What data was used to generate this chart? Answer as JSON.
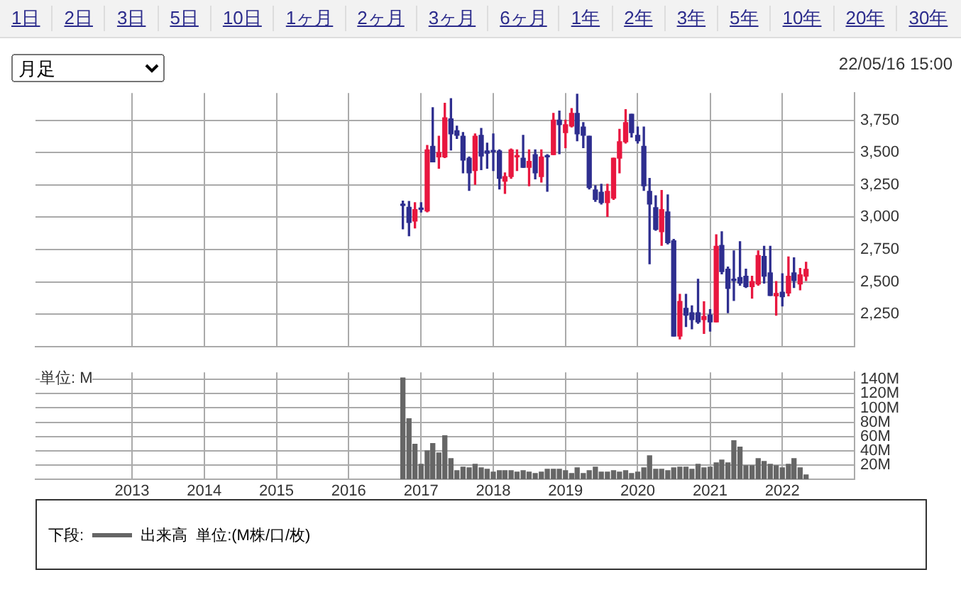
{
  "chart_data": [
    {
      "type": "candlestick",
      "subtitle": "22/05/16 15:00",
      "annotations": [
        "1日",
        "2日",
        "3日",
        "5日",
        "10日",
        "1ヶ月",
        "2ヶ月",
        "3ヶ月",
        "6ヶ月",
        "1年",
        "2年",
        "3年",
        "5年",
        "10年",
        "20年",
        "30年",
        "月足"
      ],
      "x": [
        "2016-10",
        "2016-11",
        "2016-12",
        "2017-01",
        "2017-02",
        "2017-03",
        "2017-04",
        "2017-05",
        "2017-06",
        "2017-07",
        "2017-08",
        "2017-09",
        "2017-10",
        "2017-11",
        "2017-12",
        "2018-01",
        "2018-02",
        "2018-03",
        "2018-04",
        "2018-05",
        "2018-06",
        "2018-07",
        "2018-08",
        "2018-09",
        "2018-10",
        "2018-11",
        "2018-12",
        "2019-01",
        "2019-02",
        "2019-03",
        "2019-04",
        "2019-05",
        "2019-06",
        "2019-07",
        "2019-08",
        "2019-09",
        "2019-10",
        "2019-11",
        "2019-12",
        "2020-01",
        "2020-02",
        "2020-03",
        "2020-04",
        "2020-05",
        "2020-06",
        "2020-07",
        "2020-08",
        "2020-09",
        "2020-10",
        "2020-11",
        "2020-12",
        "2021-01",
        "2021-02",
        "2021-03",
        "2021-04",
        "2021-05",
        "2021-06",
        "2021-07",
        "2021-08",
        "2021-09",
        "2021-10",
        "2021-11",
        "2021-12",
        "2022-01",
        "2022-02",
        "2022-03",
        "2022-04",
        "2022-05"
      ],
      "ohlc": [
        [
          3100,
          3125,
          2910,
          3090
        ],
        [
          3076,
          3122,
          2856,
          2959
        ],
        [
          2970,
          3112,
          2917,
          3059
        ],
        [
          3070,
          3112,
          3040,
          3060
        ],
        [
          3048,
          3555,
          3041,
          3520
        ],
        [
          3548,
          3846,
          3427,
          3427
        ],
        [
          3466,
          3626,
          3378,
          3500
        ],
        [
          3466,
          3881,
          3460,
          3768
        ],
        [
          3760,
          3917,
          3520,
          3644
        ],
        [
          3668,
          3704,
          3608,
          3633
        ],
        [
          3626,
          3654,
          3342,
          3441
        ],
        [
          3456,
          3466,
          3207,
          3342
        ],
        [
          3360,
          3644,
          3254,
          3626
        ],
        [
          3633,
          3686,
          3367,
          3473
        ],
        [
          3512,
          3573,
          3378,
          3495
        ],
        [
          3516,
          3644,
          3360,
          3505
        ],
        [
          3512,
          3520,
          3218,
          3300
        ],
        [
          3278,
          3342,
          3183,
          3314
        ],
        [
          3314,
          3527,
          3300,
          3520
        ],
        [
          3466,
          3520,
          3360,
          3470
        ],
        [
          3456,
          3633,
          3385,
          3385
        ],
        [
          3385,
          3520,
          3243,
          3431
        ],
        [
          3484,
          3520,
          3296,
          3342
        ],
        [
          3314,
          3520,
          3271,
          3466
        ],
        [
          3470,
          3484,
          3200,
          3466
        ],
        [
          3484,
          3803,
          3484,
          3750
        ],
        [
          3750,
          3821,
          3491,
          3715
        ],
        [
          3654,
          3750,
          3537,
          3715
        ],
        [
          3704,
          3839,
          3697,
          3803
        ],
        [
          3803,
          3950,
          3590,
          3644
        ],
        [
          3697,
          3732,
          3537,
          3633
        ],
        [
          3626,
          3626,
          3218,
          3229
        ],
        [
          3211,
          3243,
          3122,
          3137
        ],
        [
          3193,
          3254,
          3101,
          3112
        ],
        [
          3112,
          3254,
          3005,
          3200
        ],
        [
          3147,
          3456,
          3137,
          3456
        ],
        [
          3456,
          3679,
          3342,
          3583
        ],
        [
          3583,
          3832,
          3573,
          3732
        ],
        [
          3796,
          3796,
          3619,
          3654
        ],
        [
          3633,
          3697,
          3573,
          3590
        ],
        [
          3548,
          3697,
          3207,
          3243
        ],
        [
          3200,
          3300,
          2640,
          3101
        ],
        [
          3073,
          3165,
          2899,
          2906
        ],
        [
          2888,
          3207,
          2782,
          3059
        ],
        [
          3041,
          3172,
          2793,
          2803
        ],
        [
          2817,
          2828,
          2080,
          2080
        ],
        [
          2080,
          2403,
          2059,
          2349
        ],
        [
          2296,
          2403,
          2154,
          2243
        ],
        [
          2261,
          2314,
          2137,
          2208
        ],
        [
          2261,
          2520,
          2179,
          2190
        ],
        [
          2208,
          2346,
          2101,
          2232
        ],
        [
          2243,
          2286,
          2119,
          2190
        ],
        [
          2190,
          2864,
          2190,
          2775
        ],
        [
          2782,
          2888,
          2562,
          2580
        ],
        [
          2598,
          2615,
          2261,
          2449
        ],
        [
          2520,
          2740,
          2356,
          2510
        ],
        [
          2534,
          2810,
          2474,
          2491
        ],
        [
          2544,
          2598,
          2456,
          2463
        ],
        [
          2463,
          2544,
          2374,
          2502
        ],
        [
          2484,
          2740,
          2474,
          2704
        ],
        [
          2697,
          2775,
          2491,
          2544
        ],
        [
          2569,
          2775,
          2395,
          2395
        ],
        [
          2392,
          2502,
          2243,
          2410
        ],
        [
          2420,
          2562,
          2314,
          2385
        ],
        [
          2413,
          2693,
          2392,
          2544
        ],
        [
          2569,
          2686,
          2456,
          2509
        ],
        [
          2484,
          2604,
          2438,
          2555
        ],
        [
          2544,
          2651,
          2509,
          2597
        ]
      ],
      "colors": [
        "#2e2e8f",
        "#2e2e8f",
        "#e8173f",
        "#2e2e8f",
        "#e8173f",
        "#2e2e8f",
        "#e8173f",
        "#e8173f",
        "#2e2e8f",
        "#2e2e8f",
        "#2e2e8f",
        "#2e2e8f",
        "#e8173f",
        "#2e2e8f",
        "#2e2e8f",
        "#2e2e8f",
        "#2e2e8f",
        "#e8173f",
        "#e8173f",
        "#e8173f",
        "#2e2e8f",
        "#e8173f",
        "#2e2e8f",
        "#e8173f",
        "#2e2e8f",
        "#e8173f",
        "#2e2e8f",
        "#e8173f",
        "#e8173f",
        "#2e2e8f",
        "#2e2e8f",
        "#2e2e8f",
        "#2e2e8f",
        "#2e2e8f",
        "#e8173f",
        "#e8173f",
        "#e8173f",
        "#e8173f",
        "#2e2e8f",
        "#2e2e8f",
        "#2e2e8f",
        "#2e2e8f",
        "#2e2e8f",
        "#e8173f",
        "#2e2e8f",
        "#2e2e8f",
        "#e8173f",
        "#2e2e8f",
        "#2e2e8f",
        "#2e2e8f",
        "#e8173f",
        "#2e2e8f",
        "#e8173f",
        "#2e2e8f",
        "#2e2e8f",
        "#2e2e8f",
        "#2e2e8f",
        "#2e2e8f",
        "#e8173f",
        "#e8173f",
        "#2e2e8f",
        "#2e2e8f",
        "#e8173f",
        "#2e2e8f",
        "#e8173f",
        "#2e2e8f",
        "#e8173f",
        "#e8173f"
      ],
      "xlim": [
        "2011-09",
        "2023-01"
      ],
      "xticks": [
        {
          "value": "2013-01",
          "label": null
        },
        {
          "value": "2014-01",
          "label": null
        },
        {
          "value": "2015-01",
          "label": null
        },
        {
          "value": "2016-01",
          "label": null
        },
        {
          "value": "2017-01",
          "label": null
        },
        {
          "value": "2018-01",
          "label": null
        },
        {
          "value": "2019-01",
          "label": null
        },
        {
          "value": "2020-01",
          "label": null
        },
        {
          "value": "2021-01",
          "label": null
        },
        {
          "value": "2022-01",
          "label": null
        }
      ],
      "ylim": [
        2000,
        3960
      ],
      "yticks": [
        {
          "value": 2250,
          "label": "2,250"
        },
        {
          "value": 2500,
          "label": "2,500"
        },
        {
          "value": 2750,
          "label": "2,750"
        },
        {
          "value": 3000,
          "label": "3,000"
        },
        {
          "value": 3250,
          "label": "3,250"
        },
        {
          "value": 3500,
          "label": "3,500"
        },
        {
          "value": 3750,
          "label": "3,750"
        }
      ],
      "grid": true,
      "tick_labels": "y"
    },
    {
      "type": "bar",
      "legend": "bottom",
      "legend_title": "下段:",
      "annotations": [
        "単位: M",
        "単位:(M株/口/枚)"
      ],
      "x": [
        "2016-10",
        "2016-11",
        "2016-12",
        "2017-01",
        "2017-02",
        "2017-03",
        "2017-04",
        "2017-05",
        "2017-06",
        "2017-07",
        "2017-08",
        "2017-09",
        "2017-10",
        "2017-11",
        "2017-12",
        "2018-01",
        "2018-02",
        "2018-03",
        "2018-04",
        "2018-05",
        "2018-06",
        "2018-07",
        "2018-08",
        "2018-09",
        "2018-10",
        "2018-11",
        "2018-12",
        "2019-01",
        "2019-02",
        "2019-03",
        "2019-04",
        "2019-05",
        "2019-06",
        "2019-07",
        "2019-08",
        "2019-09",
        "2019-10",
        "2019-11",
        "2019-12",
        "2020-01",
        "2020-02",
        "2020-03",
        "2020-04",
        "2020-05",
        "2020-06",
        "2020-07",
        "2020-08",
        "2020-09",
        "2020-10",
        "2020-11",
        "2020-12",
        "2021-01",
        "2021-02",
        "2021-03",
        "2021-04",
        "2021-05",
        "2021-06",
        "2021-07",
        "2021-08",
        "2021-09",
        "2021-10",
        "2021-11",
        "2021-12",
        "2022-01",
        "2022-02",
        "2022-03",
        "2022-04",
        "2022-05"
      ],
      "series": [
        {
          "name": "出来高",
          "color": "#666666",
          "values": [
            142,
            85,
            49,
            21,
            40,
            50,
            37,
            61,
            29,
            12,
            17,
            16,
            21,
            16,
            14,
            10,
            12,
            12,
            12,
            10,
            12,
            10,
            8,
            10,
            14,
            14,
            14,
            12,
            8,
            16,
            8,
            12,
            17,
            10,
            10,
            12,
            10,
            12,
            8,
            10,
            16,
            33,
            14,
            14,
            12,
            16,
            17,
            17,
            14,
            21,
            16,
            17,
            23,
            27,
            23,
            54,
            45,
            19,
            19,
            29,
            25,
            21,
            19,
            16,
            21,
            29,
            16,
            6
          ]
        }
      ],
      "xlim": [
        "2011-09",
        "2023-01"
      ],
      "xticks": [
        {
          "value": "2013-01",
          "label": "2013"
        },
        {
          "value": "2014-01",
          "label": "2014"
        },
        {
          "value": "2015-01",
          "label": "2015"
        },
        {
          "value": "2016-01",
          "label": "2016"
        },
        {
          "value": "2017-01",
          "label": "2017"
        },
        {
          "value": "2018-01",
          "label": "2018"
        },
        {
          "value": "2019-01",
          "label": "2019"
        },
        {
          "value": "2020-01",
          "label": "2020"
        },
        {
          "value": "2021-01",
          "label": "2021"
        },
        {
          "value": "2022-01",
          "label": "2022"
        }
      ],
      "ylim": [
        0,
        150
      ],
      "yticks": [
        {
          "value": 20,
          "label": "20M"
        },
        {
          "value": 40,
          "label": "40M"
        },
        {
          "value": 60,
          "label": "60M"
        },
        {
          "value": 80,
          "label": "80M"
        },
        {
          "value": 100,
          "label": "100M"
        },
        {
          "value": 120,
          "label": "120M"
        },
        {
          "value": 140,
          "label": "140M"
        }
      ],
      "grid": true
    }
  ]
}
